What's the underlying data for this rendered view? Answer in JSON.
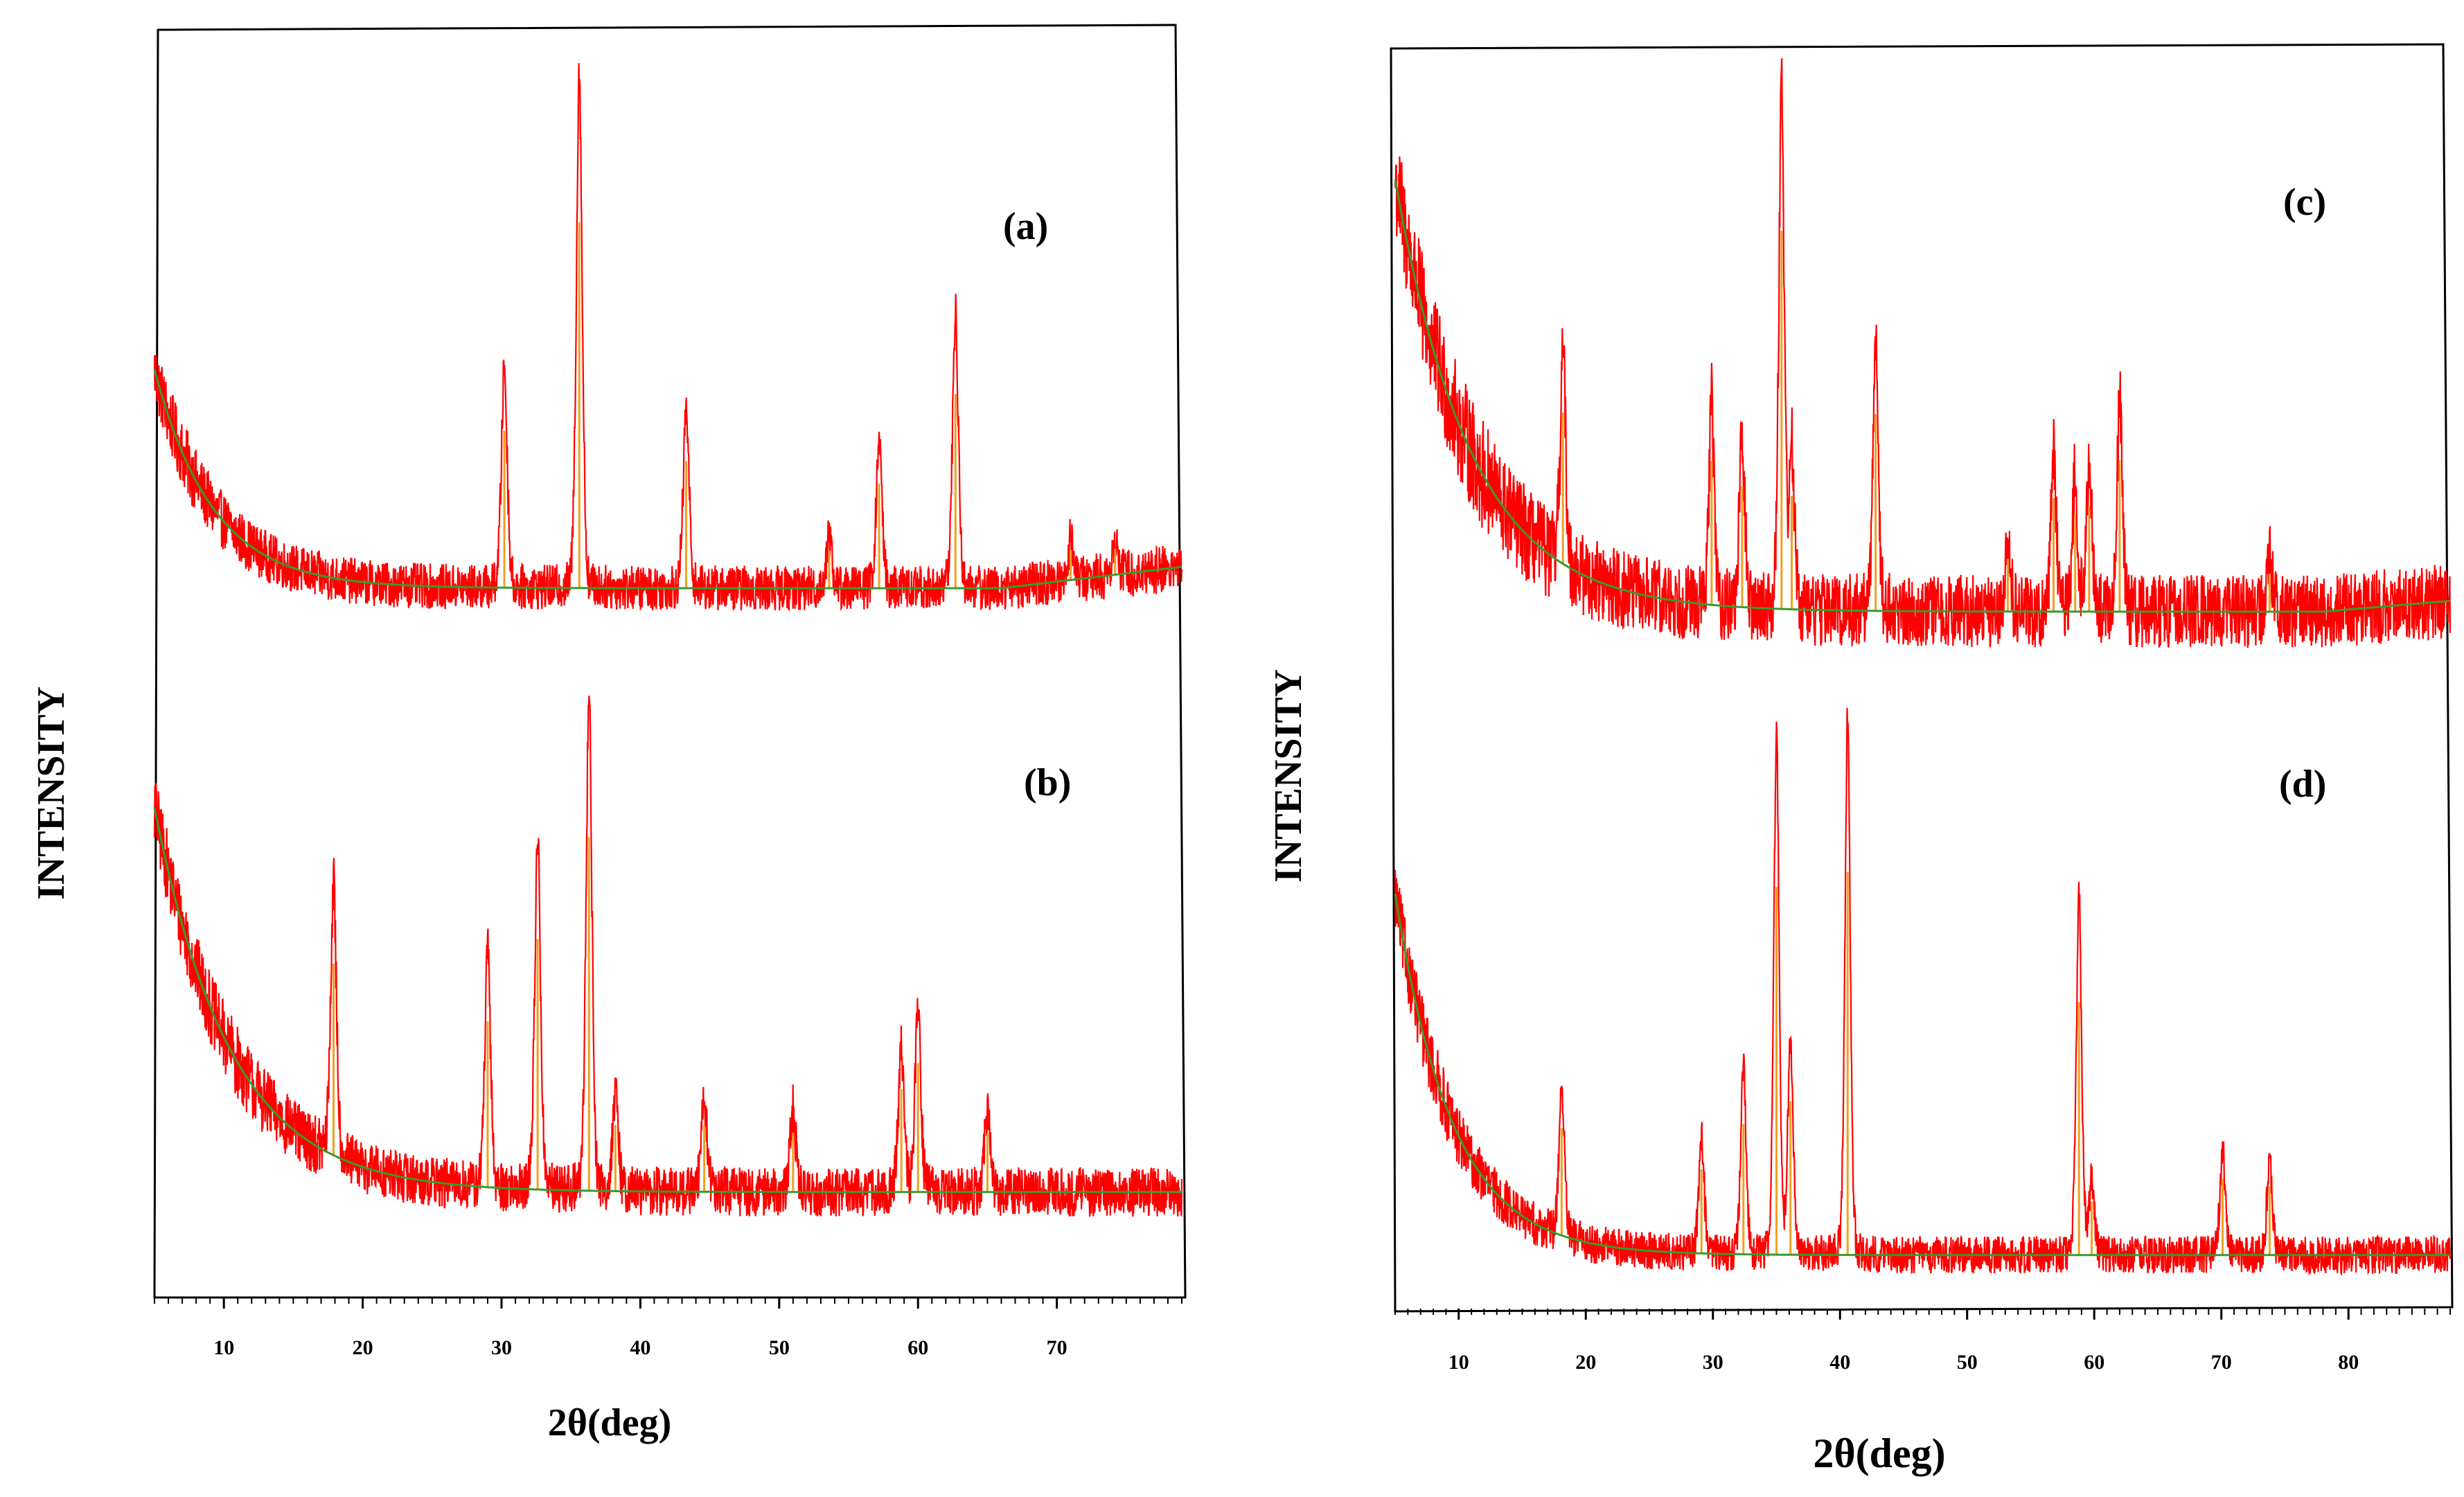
{
  "colors": {
    "pattern": "#ff0000",
    "background_fit": "#3a9a2a",
    "peak_marker": "#f0a020",
    "axes": "#000000"
  },
  "chart_data": [
    {
      "type": "line",
      "group": "left",
      "label": "(a)",
      "xlabel": "2θ(deg)",
      "ylabel": "INTENSITY",
      "xlim": [
        5,
        79
      ],
      "x_ticks": [
        "10",
        "20",
        "30",
        "40",
        "50",
        "60",
        "70"
      ],
      "baseline": {
        "start": 0.58,
        "floor": 0.17,
        "decay": 4.2,
        "tail_rise": 0.04,
        "tail_start": 66
      },
      "noise": 0.045,
      "peaks": [
        {
          "x": 30.2,
          "height": 0.42
        },
        {
          "x": 35.6,
          "height": 0.98
        },
        {
          "x": 43.3,
          "height": 0.34
        },
        {
          "x": 53.6,
          "height": 0.1
        },
        {
          "x": 57.2,
          "height": 0.28
        },
        {
          "x": 62.7,
          "height": 0.52
        },
        {
          "x": 71.0,
          "height": 0.08
        },
        {
          "x": 74.2,
          "height": 0.07
        }
      ]
    },
    {
      "type": "line",
      "group": "left",
      "label": "(b)",
      "xlabel": "2θ(deg)",
      "ylabel": "INTENSITY",
      "xlim": [
        5,
        79
      ],
      "x_ticks": [
        "10",
        "20",
        "30",
        "40",
        "50",
        "60",
        "70"
      ],
      "baseline": {
        "start": 0.9,
        "floor": 0.17,
        "decay": 5.5,
        "tail_rise": 0.0,
        "tail_start": 80
      },
      "noise": 0.05,
      "peaks": [
        {
          "x": 17.9,
          "height": 0.52
        },
        {
          "x": 29.0,
          "height": 0.45
        },
        {
          "x": 32.6,
          "height": 0.68
        },
        {
          "x": 36.3,
          "height": 0.96
        },
        {
          "x": 38.2,
          "height": 0.18
        },
        {
          "x": 44.6,
          "height": 0.18
        },
        {
          "x": 51.0,
          "height": 0.16
        },
        {
          "x": 58.8,
          "height": 0.28
        },
        {
          "x": 60.0,
          "height": 0.35
        },
        {
          "x": 65.0,
          "height": 0.16
        }
      ]
    },
    {
      "type": "line",
      "group": "right",
      "label": "(c)",
      "xlabel": "2θ(deg)",
      "ylabel": "INTENSITY",
      "xlim": [
        5,
        88
      ],
      "x_ticks": [
        "10",
        "20",
        "30",
        "40",
        "50",
        "60",
        "70",
        "80"
      ],
      "baseline": {
        "start": 0.95,
        "floor": 0.15,
        "decay": 6.0,
        "tail_rise": 0.02,
        "tail_start": 78
      },
      "noise": 0.075,
      "peaks": [
        {
          "x": 18.2,
          "height": 0.4
        },
        {
          "x": 29.9,
          "height": 0.38
        },
        {
          "x": 32.3,
          "height": 0.32
        },
        {
          "x": 35.4,
          "height": 1.0
        },
        {
          "x": 36.2,
          "height": 0.3
        },
        {
          "x": 42.8,
          "height": 0.52
        },
        {
          "x": 53.2,
          "height": 0.14
        },
        {
          "x": 56.8,
          "height": 0.3
        },
        {
          "x": 58.5,
          "height": 0.26
        },
        {
          "x": 59.6,
          "height": 0.28
        },
        {
          "x": 62.0,
          "height": 0.4
        },
        {
          "x": 73.8,
          "height": 0.1
        }
      ]
    },
    {
      "type": "line",
      "group": "right",
      "label": "(d)",
      "xlabel": "2θ(deg)",
      "ylabel": "INTENSITY",
      "xlim": [
        5,
        88
      ],
      "x_ticks": [
        "10",
        "20",
        "30",
        "40",
        "50",
        "60",
        "70",
        "80"
      ],
      "baseline": {
        "start": 0.74,
        "floor": 0.08,
        "decay": 4.5,
        "tail_rise": 0.0,
        "tail_start": 90
      },
      "noise": 0.045,
      "peaks": [
        {
          "x": 18.1,
          "height": 0.28
        },
        {
          "x": 29.1,
          "height": 0.22
        },
        {
          "x": 32.4,
          "height": 0.34
        },
        {
          "x": 35.0,
          "height": 0.96
        },
        {
          "x": 36.1,
          "height": 0.4
        },
        {
          "x": 40.6,
          "height": 1.0
        },
        {
          "x": 58.8,
          "height": 0.66
        },
        {
          "x": 59.8,
          "height": 0.14
        },
        {
          "x": 70.1,
          "height": 0.2
        },
        {
          "x": 73.8,
          "height": 0.18
        }
      ]
    }
  ]
}
